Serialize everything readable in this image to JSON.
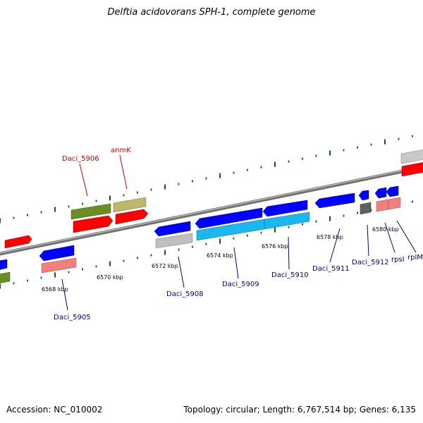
{
  "title": "Delftia acidovorans SPH-1, complete genome",
  "accession": "Accession: NC_010002",
  "summary": "Topology: circular; Length: 6,767,514 bp; Genes: 6,135",
  "colors": {
    "strand_forward_cds": "#ff0000",
    "strand_reverse_cds": "#0000ff",
    "gene_olive": "#6b8e23",
    "gene_khaki": "#bdb76b",
    "gene_pink": "#f08080",
    "gene_cyan": "#1ab8ef",
    "gene_grey": "#bfbfbf",
    "gene_dark_grey": "#606060",
    "forward_label": "#cc0000",
    "reverse_label": "#00008b",
    "tick": "#006400"
  },
  "kbp_labels": [
    {
      "text": "6568 kbp"
    },
    {
      "text": "6570 kbp"
    },
    {
      "text": "6572 kbp"
    },
    {
      "text": "6574 kbp"
    },
    {
      "text": "6576 kbp"
    },
    {
      "text": "6578 kbp"
    },
    {
      "text": "6580 kbp"
    }
  ],
  "forward_labels": [
    {
      "text": "Daci_5906"
    },
    {
      "text": "anmK"
    }
  ],
  "reverse_labels": [
    {
      "text": "Daci_5905"
    },
    {
      "text": "Daci_5908"
    },
    {
      "text": "Daci_5909"
    },
    {
      "text": "Daci_5910"
    },
    {
      "text": "Daci_5911"
    },
    {
      "text": "Daci_5912"
    },
    {
      "text": "rpsI"
    },
    {
      "text": "rplM"
    }
  ]
}
